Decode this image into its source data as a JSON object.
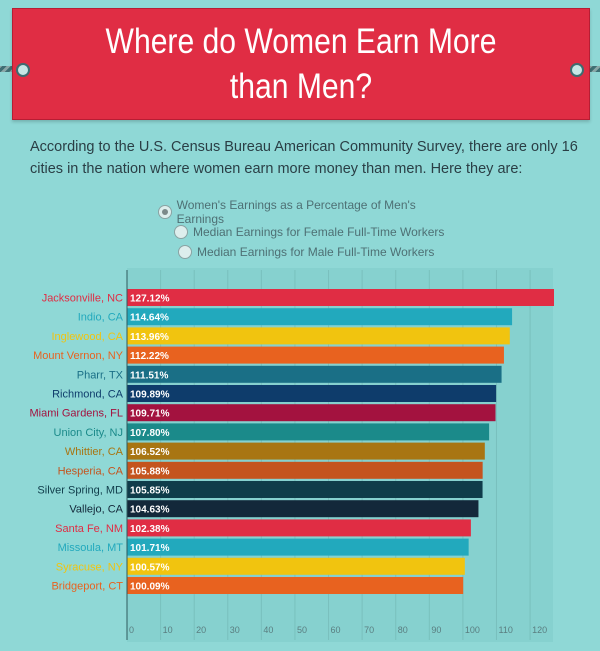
{
  "title": "Where do Women Earn More than Men?",
  "intro": "According to the U.S. Census Bureau American Community Survey, there are only 16 cities in the nation where women earn more money than men. Here they are:",
  "legend": [
    {
      "label": "Women's Earnings as a Percentage of Men's Earnings",
      "selected": true
    },
    {
      "label": "Median Earnings for Female Full-Time Workers",
      "selected": false
    },
    {
      "label": "Median Earnings for Male Full-Time Workers",
      "selected": false
    }
  ],
  "chart_data": {
    "type": "bar",
    "orientation": "horizontal",
    "categories": [
      "Jacksonville, NC",
      "Indio, CA",
      "Inglewood, CA",
      "Mount Vernon, NY",
      "Pharr, TX",
      "Richmond, CA",
      "Miami Gardens, FL",
      "Union City, NJ",
      "Whittier, CA",
      "Hesperia, CA",
      "Silver Spring, MD",
      "Vallejo, CA",
      "Santa Fe, NM",
      "Missoula, MT",
      "Syracuse, NY",
      "Bridgeport, CT"
    ],
    "values": [
      127.12,
      114.64,
      113.96,
      112.22,
      111.51,
      109.89,
      109.71,
      107.8,
      106.52,
      105.88,
      105.85,
      104.63,
      102.38,
      101.71,
      100.57,
      100.09
    ],
    "value_labels": [
      "127.12%",
      "114.64%",
      "113.96%",
      "112.22%",
      "111.51%",
      "109.89%",
      "109.71%",
      "107.80%",
      "106.52%",
      "105.88%",
      "105.85%",
      "104.63%",
      "102.38%",
      "101.71%",
      "100.57%",
      "100.09%"
    ],
    "colors": [
      "#e02d44",
      "#22a9bd",
      "#f1c40f",
      "#e8621f",
      "#1a6f86",
      "#0e3c6b",
      "#a3123f",
      "#1b8a8a",
      "#a87512",
      "#c4541e",
      "#0f3c4a",
      "#13283a",
      "#e02d44",
      "#22a9bd",
      "#f1c40f",
      "#e8621f"
    ],
    "xticks": [
      0,
      10,
      20,
      30,
      40,
      50,
      60,
      70,
      80,
      90,
      100,
      110,
      120
    ],
    "xlim": [
      0,
      127.12
    ],
    "grid": true
  }
}
